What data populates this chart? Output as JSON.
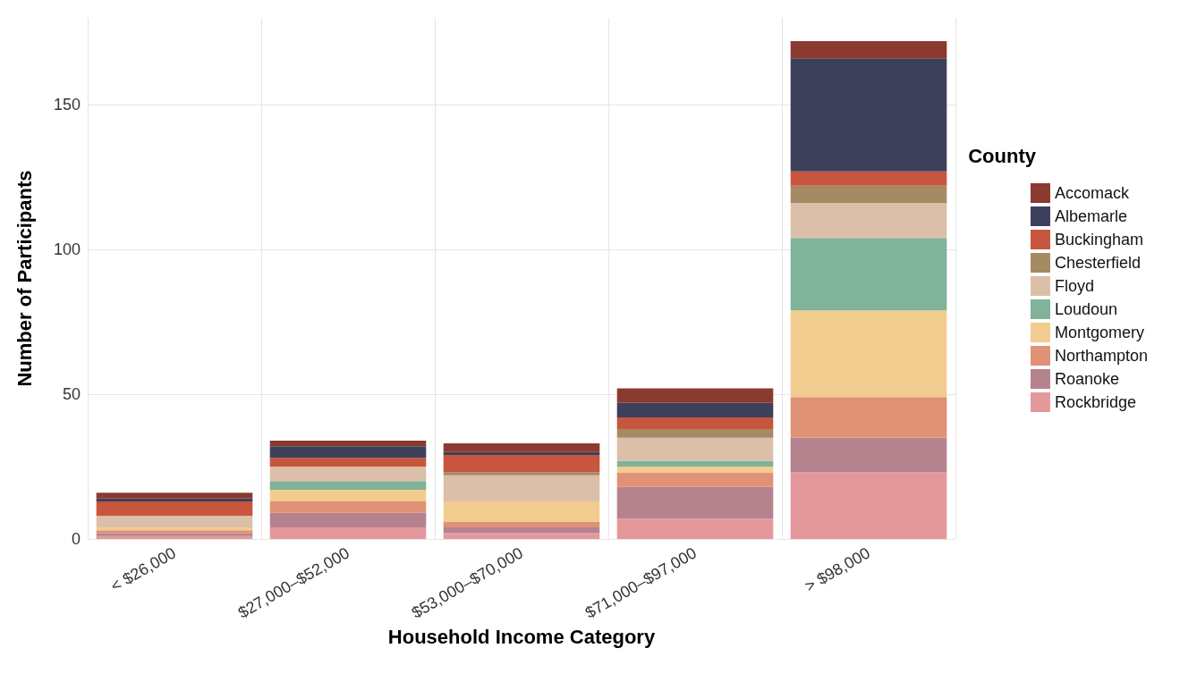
{
  "chart_data": {
    "type": "bar",
    "stacked": true,
    "xlabel": "Household Income Category",
    "ylabel": "Number of Participants",
    "legend_title": "County",
    "categories": [
      "< $26,000",
      "$27,000–$52,000",
      "$53,000–$70,000",
      "$71,000–$97,000",
      "> $98,000"
    ],
    "series": [
      {
        "name": "Rockbridge",
        "color": "#e5989b",
        "values": [
          1,
          4,
          2,
          7,
          23
        ]
      },
      {
        "name": "Roanoke",
        "color": "#b5838d",
        "values": [
          1,
          5,
          2,
          11,
          12
        ]
      },
      {
        "name": "Northampton",
        "color": "#e09176",
        "values": [
          1,
          4,
          2,
          5,
          14
        ]
      },
      {
        "name": "Montgomery",
        "color": "#f2cc8f",
        "values": [
          1,
          4,
          7,
          2,
          30
        ]
      },
      {
        "name": "Loudoun",
        "color": "#81b29a",
        "values": [
          0,
          3,
          0,
          2,
          25
        ]
      },
      {
        "name": "Floyd",
        "color": "#dbbfa8",
        "values": [
          4,
          5,
          9,
          8,
          12
        ]
      },
      {
        "name": "Chesterfield",
        "color": "#a68a64",
        "values": [
          0,
          0,
          1,
          3,
          6
        ]
      },
      {
        "name": "Buckingham",
        "color": "#c8553d",
        "values": [
          5,
          3,
          6,
          4,
          5
        ]
      },
      {
        "name": "Albemarle",
        "color": "#3d405b",
        "values": [
          1,
          4,
          1,
          5,
          39
        ]
      },
      {
        "name": "Accomack",
        "color": "#8b3a2f",
        "values": [
          2,
          2,
          3,
          5,
          6
        ]
      }
    ],
    "ylim": [
      0,
      180
    ],
    "yticks": [
      0,
      50,
      100,
      150
    ],
    "grid": true,
    "legend": "right"
  }
}
